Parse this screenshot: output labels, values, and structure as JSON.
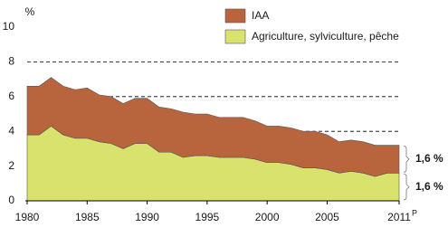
{
  "chart_data": {
    "type": "stacked-area",
    "y_unit": "%",
    "x": [
      1980,
      1981,
      1982,
      1983,
      1984,
      1985,
      1986,
      1987,
      1988,
      1989,
      1990,
      1991,
      1992,
      1993,
      1994,
      1995,
      1996,
      1997,
      1998,
      1999,
      2000,
      2001,
      2002,
      2003,
      2004,
      2005,
      2006,
      2007,
      2008,
      2009,
      2010,
      2011
    ],
    "series": [
      {
        "name": "Agriculture, sylviculture, pêche",
        "color": "#d8e26c",
        "values": [
          3.8,
          3.8,
          4.3,
          3.8,
          3.6,
          3.6,
          3.4,
          3.3,
          3.0,
          3.3,
          3.3,
          2.8,
          2.8,
          2.5,
          2.6,
          2.6,
          2.5,
          2.5,
          2.5,
          2.4,
          2.2,
          2.2,
          2.1,
          1.9,
          1.9,
          1.8,
          1.6,
          1.7,
          1.6,
          1.4,
          1.6,
          1.6
        ],
        "end_label": "1,6 %"
      },
      {
        "name": "IAA",
        "color": "#b8653d",
        "values": [
          2.8,
          2.8,
          2.8,
          2.8,
          2.8,
          2.9,
          2.7,
          2.7,
          2.6,
          2.6,
          2.6,
          2.6,
          2.5,
          2.6,
          2.4,
          2.4,
          2.3,
          2.3,
          2.3,
          2.2,
          2.1,
          2.1,
          2.1,
          2.1,
          2.1,
          2.0,
          1.8,
          1.8,
          1.8,
          1.8,
          1.6,
          1.6
        ],
        "end_label": "1,6 %"
      }
    ],
    "xlim": [
      1980,
      2011
    ],
    "xticks": [
      1980,
      1985,
      1990,
      1995,
      2000,
      2005,
      2011
    ],
    "xtick_suffix": "P",
    "ylim": [
      0,
      10
    ],
    "yticks": [
      0,
      2,
      4,
      6,
      8,
      10
    ],
    "grid": true
  }
}
